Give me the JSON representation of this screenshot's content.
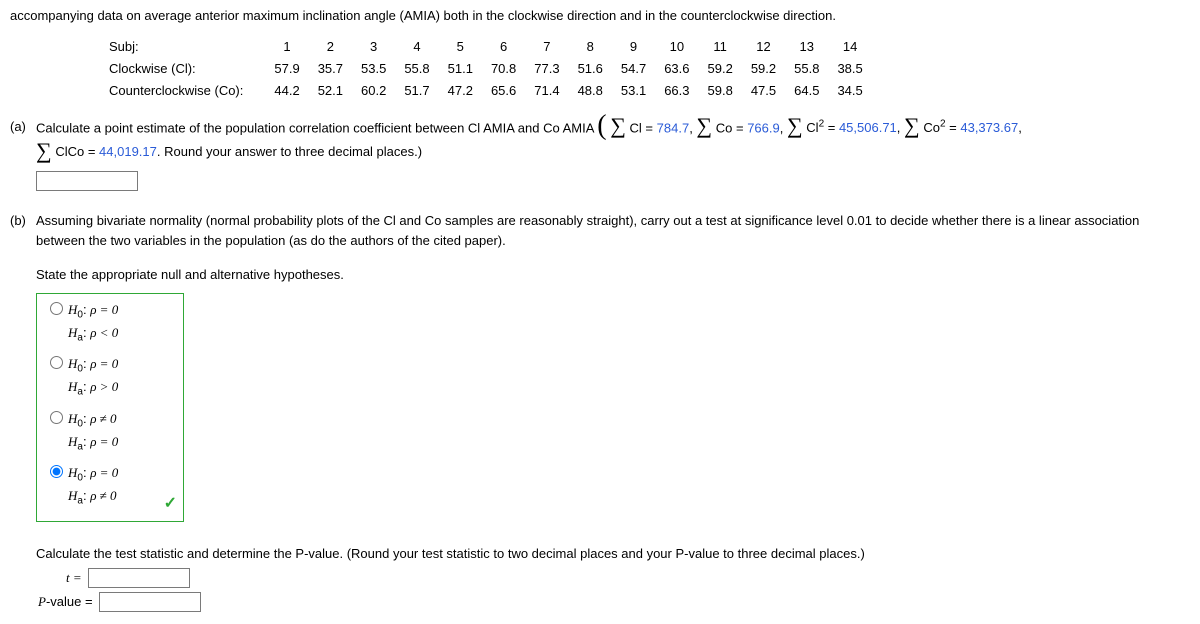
{
  "intro": "accompanying data on average anterior maximum inclination angle (AMIA) both in the clockwise direction and in the counterclockwise direction.",
  "table": {
    "rows": [
      {
        "label": "Subj:",
        "cells": [
          "1",
          "2",
          "3",
          "4",
          "5",
          "6",
          "7",
          "8",
          "9",
          "10",
          "11",
          "12",
          "13",
          "14"
        ]
      },
      {
        "label": "Clockwise (Cl):",
        "cells": [
          "57.9",
          "35.7",
          "53.5",
          "55.8",
          "51.1",
          "70.8",
          "77.3",
          "51.6",
          "54.7",
          "63.6",
          "59.2",
          "59.2",
          "55.8",
          "38.5"
        ]
      },
      {
        "label": "Counterclockwise (Co):",
        "cells": [
          "44.2",
          "52.1",
          "60.2",
          "51.7",
          "47.2",
          "65.6",
          "71.4",
          "48.8",
          "53.1",
          "66.3",
          "59.8",
          "47.5",
          "64.5",
          "34.5"
        ]
      }
    ]
  },
  "a": {
    "letter": "(a)",
    "prompt": "Calculate a point estimate of the population correlation coefficient between Cl AMIA and Co AMIA ",
    "sums": {
      "cl": {
        "expr": "Cl",
        "val": "784.7"
      },
      "co": {
        "expr": "Co",
        "val": "766.9"
      },
      "cl2": {
        "expr": "Cl",
        "sup": "2",
        "val": "45,506.71"
      },
      "co2": {
        "expr": "Co",
        "sup": "2",
        "val": "43,373.67"
      },
      "clco": {
        "expr": "ClCo",
        "val": "44,019.17"
      }
    },
    "tail": ". Round your answer to three decimal places.)",
    "colors": {
      "val": "#2a5bd7"
    }
  },
  "b": {
    "letter": "(b)",
    "prompt": "Assuming bivariate normality (normal probability plots of the Cl and Co samples are reasonably straight), carry out a test at significance level 0.01 to decide whether there is a linear association between the two variables in the population (as do the authors of the cited paper).",
    "state": "State the appropriate null and alternative hypotheses.",
    "options": [
      {
        "h0": "ρ = 0",
        "ha": "ρ < 0",
        "selected": false
      },
      {
        "h0": "ρ = 0",
        "ha": "ρ > 0",
        "selected": false
      },
      {
        "h0": "ρ ≠ 0",
        "ha": "ρ = 0",
        "selected": false
      },
      {
        "h0": "ρ = 0",
        "ha": "ρ ≠ 0",
        "selected": true
      }
    ],
    "correct": true,
    "calc": "Calculate the test statistic and determine the P-value. (Round your test statistic to two decimal places and your P-value to three decimal places.)",
    "t_label": "t =",
    "p_label": "P-value ="
  },
  "style": {
    "box_border": "#2fa836",
    "check_color": "#2fa836",
    "font": "Verdana",
    "base_fontsize": 13,
    "value_color": "#2a5bd7"
  }
}
